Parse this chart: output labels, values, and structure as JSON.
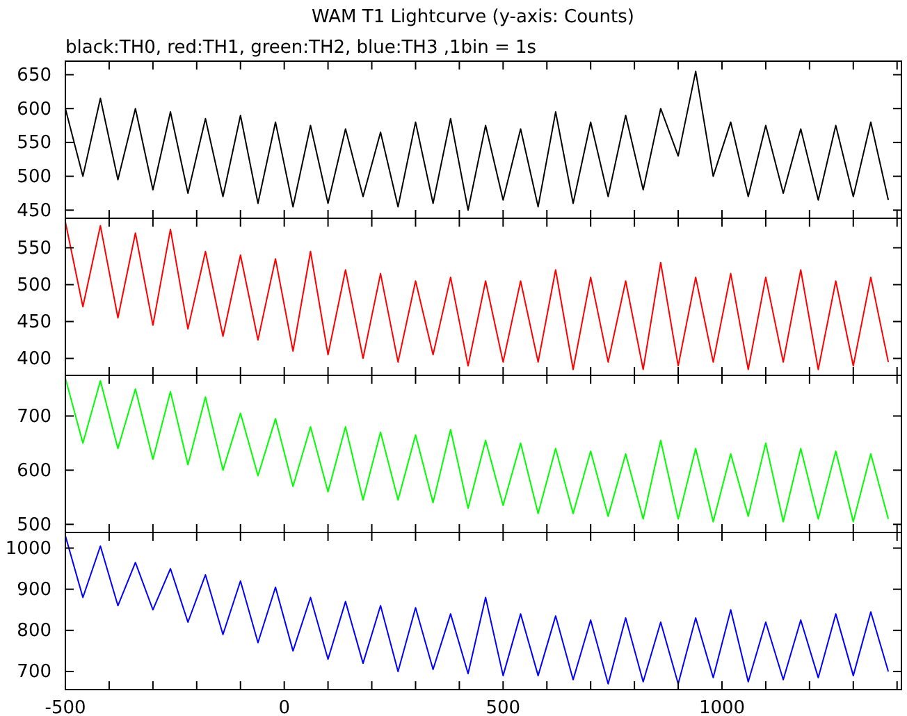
{
  "chart_data": [
    {
      "type": "line",
      "title": "WAM T1 Lightcurve (y-axis: Counts)",
      "subtitle": "black:TH0, red:TH1, green:TH2, blue:TH3 ,1bin = 1s",
      "tick_labels": "y",
      "xlim": [
        -500,
        1410
      ],
      "ylim": [
        438,
        670
      ],
      "yticks": [
        450,
        500,
        550,
        600,
        650
      ],
      "xticks": [
        -500,
        {
          "value": -400,
          "label": null
        },
        {
          "value": -300,
          "label": null
        },
        {
          "value": -200,
          "label": null
        },
        {
          "value": -100,
          "label": null
        },
        0,
        {
          "value": 100,
          "label": null
        },
        {
          "value": 200,
          "label": null
        },
        {
          "value": 300,
          "label": null
        },
        {
          "value": 400,
          "label": null
        },
        500,
        {
          "value": 600,
          "label": null
        },
        {
          "value": 700,
          "label": null
        },
        {
          "value": 800,
          "label": null
        },
        {
          "value": 900,
          "label": null
        },
        1000,
        {
          "value": 1100,
          "label": null
        },
        {
          "value": 1200,
          "label": null
        },
        {
          "value": 1300,
          "label": null
        },
        {
          "value": 1400,
          "label": null
        }
      ],
      "x": [
        -500,
        -460,
        -420,
        -380,
        -340,
        -300,
        -260,
        -220,
        -180,
        -140,
        -100,
        -60,
        -20,
        20,
        60,
        100,
        140,
        180,
        220,
        260,
        300,
        340,
        380,
        420,
        460,
        500,
        540,
        580,
        620,
        660,
        700,
        740,
        780,
        820,
        860,
        900,
        940,
        980,
        1020,
        1060,
        1100,
        1140,
        1180,
        1220,
        1260,
        1300,
        1340,
        1380
      ],
      "series": [
        {
          "color": "#000000",
          "values": [
            600,
            500,
            615,
            495,
            600,
            480,
            595,
            475,
            585,
            470,
            590,
            460,
            580,
            455,
            575,
            460,
            570,
            470,
            565,
            455,
            580,
            460,
            585,
            450,
            575,
            465,
            570,
            455,
            595,
            460,
            580,
            470,
            590,
            480,
            600,
            530,
            655,
            500,
            580,
            470,
            575,
            475,
            570,
            465,
            575,
            470,
            580,
            465
          ]
        }
      ]
    },
    {
      "type": "line",
      "tick_labels": "y",
      "xlim": [
        -500,
        1410
      ],
      "ylim": [
        377,
        590
      ],
      "yticks": [
        400,
        450,
        500,
        550
      ],
      "xticks": [
        -500,
        {
          "value": -400,
          "label": null
        },
        {
          "value": -300,
          "label": null
        },
        {
          "value": -200,
          "label": null
        },
        {
          "value": -100,
          "label": null
        },
        0,
        {
          "value": 100,
          "label": null
        },
        {
          "value": 200,
          "label": null
        },
        {
          "value": 300,
          "label": null
        },
        {
          "value": 400,
          "label": null
        },
        500,
        {
          "value": 600,
          "label": null
        },
        {
          "value": 700,
          "label": null
        },
        {
          "value": 800,
          "label": null
        },
        {
          "value": 900,
          "label": null
        },
        1000,
        {
          "value": 1100,
          "label": null
        },
        {
          "value": 1200,
          "label": null
        },
        {
          "value": 1300,
          "label": null
        },
        {
          "value": 1400,
          "label": null
        }
      ],
      "x": [
        -500,
        -460,
        -420,
        -380,
        -340,
        -300,
        -260,
        -220,
        -180,
        -140,
        -100,
        -60,
        -20,
        20,
        60,
        100,
        140,
        180,
        220,
        260,
        300,
        340,
        380,
        420,
        460,
        500,
        540,
        580,
        620,
        660,
        700,
        740,
        780,
        820,
        860,
        900,
        940,
        980,
        1020,
        1060,
        1100,
        1140,
        1180,
        1220,
        1260,
        1300,
        1340,
        1380
      ],
      "series": [
        {
          "color": "#ff0000",
          "values": [
            585,
            470,
            580,
            455,
            570,
            445,
            575,
            440,
            545,
            430,
            540,
            425,
            535,
            410,
            545,
            405,
            520,
            400,
            515,
            395,
            505,
            405,
            510,
            390,
            505,
            395,
            505,
            395,
            520,
            385,
            510,
            395,
            505,
            385,
            530,
            390,
            510,
            395,
            515,
            385,
            510,
            395,
            520,
            385,
            505,
            390,
            510,
            395
          ]
        }
      ]
    },
    {
      "type": "line",
      "tick_labels": "y",
      "xlim": [
        -500,
        1410
      ],
      "ylim": [
        485,
        775
      ],
      "yticks": [
        500,
        600,
        700
      ],
      "xticks": [
        -500,
        {
          "value": -400,
          "label": null
        },
        {
          "value": -300,
          "label": null
        },
        {
          "value": -200,
          "label": null
        },
        {
          "value": -100,
          "label": null
        },
        0,
        {
          "value": 100,
          "label": null
        },
        {
          "value": 200,
          "label": null
        },
        {
          "value": 300,
          "label": null
        },
        {
          "value": 400,
          "label": null
        },
        500,
        {
          "value": 600,
          "label": null
        },
        {
          "value": 700,
          "label": null
        },
        {
          "value": 800,
          "label": null
        },
        {
          "value": 900,
          "label": null
        },
        1000,
        {
          "value": 1100,
          "label": null
        },
        {
          "value": 1200,
          "label": null
        },
        {
          "value": 1300,
          "label": null
        },
        {
          "value": 1400,
          "label": null
        }
      ],
      "x": [
        -500,
        -460,
        -420,
        -380,
        -340,
        -300,
        -260,
        -220,
        -180,
        -140,
        -100,
        -60,
        -20,
        20,
        60,
        100,
        140,
        180,
        220,
        260,
        300,
        340,
        380,
        420,
        460,
        500,
        540,
        580,
        620,
        660,
        700,
        740,
        780,
        820,
        860,
        900,
        940,
        980,
        1020,
        1060,
        1100,
        1140,
        1180,
        1220,
        1260,
        1300,
        1340,
        1380
      ],
      "series": [
        {
          "color": "#00ff00",
          "values": [
            770,
            650,
            765,
            640,
            750,
            620,
            745,
            610,
            735,
            600,
            705,
            590,
            695,
            570,
            680,
            560,
            680,
            545,
            670,
            545,
            665,
            540,
            675,
            530,
            655,
            535,
            650,
            520,
            640,
            520,
            635,
            515,
            630,
            510,
            655,
            510,
            640,
            505,
            630,
            515,
            650,
            505,
            640,
            510,
            635,
            505,
            630,
            510
          ]
        }
      ]
    },
    {
      "type": "line",
      "xlim": [
        -500,
        1410
      ],
      "ylim": [
        656,
        1038
      ],
      "yticks": [
        700,
        800,
        900,
        1000
      ],
      "xticks": [
        -500,
        {
          "value": -400,
          "label": null
        },
        {
          "value": -300,
          "label": null
        },
        {
          "value": -200,
          "label": null
        },
        {
          "value": -100,
          "label": null
        },
        0,
        {
          "value": 100,
          "label": null
        },
        {
          "value": 200,
          "label": null
        },
        {
          "value": 300,
          "label": null
        },
        {
          "value": 400,
          "label": null
        },
        500,
        {
          "value": 600,
          "label": null
        },
        {
          "value": 700,
          "label": null
        },
        {
          "value": 800,
          "label": null
        },
        {
          "value": 900,
          "label": null
        },
        1000,
        {
          "value": 1100,
          "label": null
        },
        {
          "value": 1200,
          "label": null
        },
        {
          "value": 1300,
          "label": null
        },
        {
          "value": 1400,
          "label": null
        }
      ],
      "x": [
        -500,
        -460,
        -420,
        -380,
        -340,
        -300,
        -260,
        -220,
        -180,
        -140,
        -100,
        -60,
        -20,
        20,
        60,
        100,
        140,
        180,
        220,
        260,
        300,
        340,
        380,
        420,
        460,
        500,
        540,
        580,
        620,
        660,
        700,
        740,
        780,
        820,
        860,
        900,
        940,
        980,
        1020,
        1060,
        1100,
        1140,
        1180,
        1220,
        1260,
        1300,
        1340,
        1380
      ],
      "series": [
        {
          "color": "#0000ff",
          "values": [
            1030,
            880,
            1005,
            860,
            965,
            850,
            950,
            820,
            935,
            790,
            920,
            770,
            905,
            750,
            880,
            730,
            870,
            720,
            860,
            700,
            855,
            705,
            840,
            695,
            880,
            690,
            840,
            690,
            835,
            680,
            825,
            670,
            830,
            675,
            820,
            670,
            830,
            685,
            850,
            675,
            820,
            680,
            825,
            685,
            840,
            690,
            845,
            700
          ]
        }
      ]
    }
  ]
}
